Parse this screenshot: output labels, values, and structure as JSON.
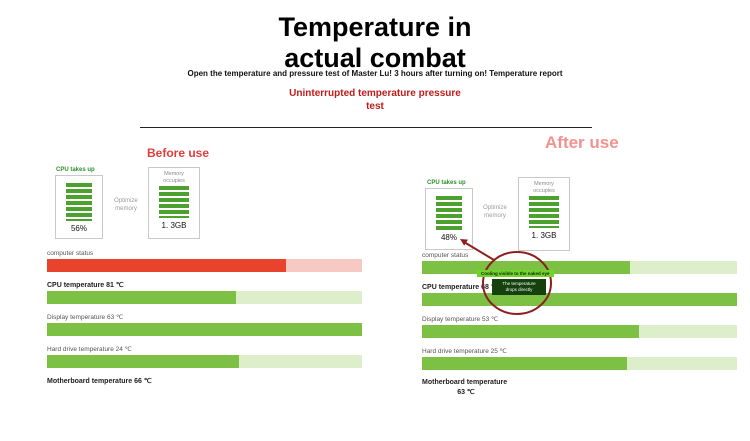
{
  "header": {
    "title_line1": "Temperature in",
    "title_line2": "actual combat",
    "subtitle": "Open the temperature and pressure test of Master Lu! 3 hours after turning on! Temperature report",
    "stress_line1": "Uninterrupted temperature pressure",
    "stress_line2": "test"
  },
  "colors": {
    "accent_red": "#c21b1b",
    "before_label": "#e23c3c",
    "after_label": "#f2928f",
    "green_fill": "#7cc143",
    "green_track": "#ddeecb",
    "red_fill": "#e8432d",
    "red_track": "#f6c9c3",
    "panel_stripe_green": "#4ca12f",
    "circle_red": "#8e1f1f",
    "badge_green_bg": "#72d32b",
    "badge_dark_bg": "#17400f"
  },
  "before": {
    "section_label": "Before use",
    "cpu_panel_label": "CPU takes up",
    "cpu_panel_value": "56%",
    "optimize_label": "Optimize memory",
    "memory_panel_label": "Memory occupies",
    "memory_panel_value": "1. 3GB",
    "status_rows": [
      {
        "label": "computer status",
        "bold": false,
        "variant": "red",
        "fill": 76
      },
      {
        "label": "CPU temperature 81 ℃",
        "bold": true,
        "variant": "green",
        "fill": 60
      },
      {
        "label": "Display temperature 63 ℃",
        "bold": false,
        "variant": "green",
        "fill": 100
      },
      {
        "label": "Hard drive temperature 24 ℃",
        "bold": false,
        "variant": "green",
        "fill": 61
      },
      {
        "label": "Motherboard temperature 66 ℃",
        "bold": true,
        "variant": "green",
        "fill": null
      }
    ]
  },
  "after": {
    "section_label": "After use",
    "cpu_panel_label": "CPU takes up",
    "cpu_panel_value": "48%",
    "optimize_label": "Optimize memory",
    "memory_panel_label": "Memory occupies",
    "memory_panel_value": "1. 3GB",
    "annotation": {
      "badge_green": "Cooling visible to the naked eye",
      "badge_dark_line1": "The temperature",
      "badge_dark_line2": "drops directly"
    },
    "status_rows": [
      {
        "label": "computer status",
        "bold": false,
        "variant": "green",
        "fill": 66
      },
      {
        "label": "CPU temperature 68 ℃",
        "bold": true,
        "variant": "green",
        "fill": 100
      },
      {
        "label": "Display temperature 53 ℃",
        "bold": false,
        "variant": "green",
        "fill": 69
      },
      {
        "label": "Hard drive temperature 25 ℃",
        "bold": false,
        "variant": "green",
        "fill": 65
      },
      {
        "label": "Motherboard temperature",
        "sublabel": "63 ℃",
        "bold": true,
        "variant": "green",
        "fill": null
      }
    ]
  }
}
